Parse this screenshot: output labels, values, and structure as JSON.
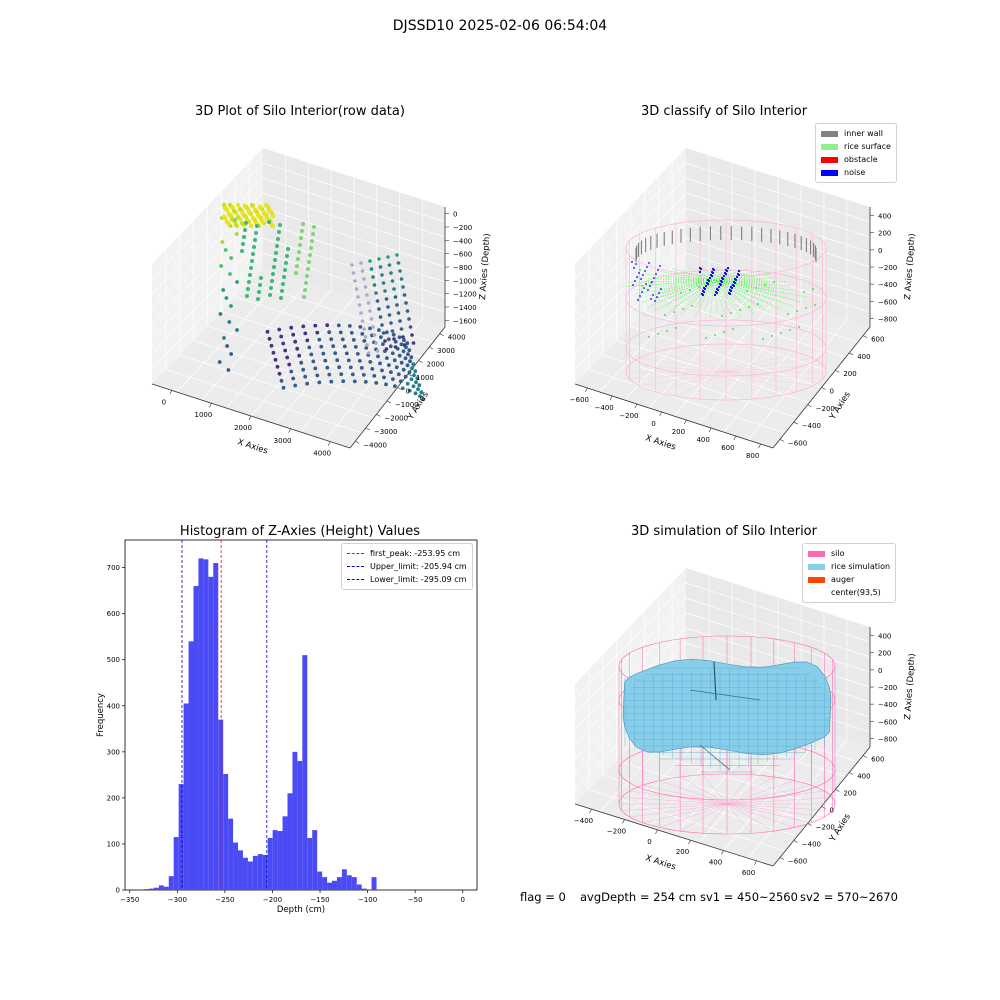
{
  "suptitle": "DJSSD10 2025-02-06 06:54:04",
  "footer": {
    "flag": "flag = 0",
    "avg_depth": "avgDepth = 254 cm",
    "sv1": "sv1 = 450~2560",
    "sv2": "sv2 = 570~2670"
  },
  "colors": {
    "hist_bar": "#4b4bf5",
    "inner_wall": "#808080",
    "rice_surface": "#90ee90",
    "obstacle": "#ff0000",
    "noise": "#0000ff",
    "silo": "#ff69b4",
    "rice_sim": "#87ceeb",
    "auger": "#ff4500"
  },
  "chart_data": [
    {
      "type": "scatter",
      "title": "3D Plot of Silo Interior(row data)",
      "xlabel": "X Axies",
      "ylabel": "Y Axies",
      "zlabel": "Z Axies (Depth)",
      "x_ticks": [
        "0",
        "1000",
        "2000",
        "3000",
        "4000"
      ],
      "y_ticks": [
        "−4000",
        "−3000",
        "−2000",
        "−1000",
        "0",
        "1000",
        "2000",
        "3000",
        "4000"
      ],
      "z_ticks": [
        "−1600",
        "−1400",
        "−1200",
        "−1000",
        "−800",
        "−600",
        "−400",
        "−200",
        "0"
      ],
      "colormap": "viridis"
    },
    {
      "type": "scatter",
      "title": "3D classify of Silo Interior",
      "xlabel": "X Axies",
      "ylabel": "Y Axies",
      "zlabel": "Z Axies (Depth)",
      "x_ticks": [
        "−600",
        "−400",
        "−200",
        "0",
        "200",
        "400",
        "600",
        "800"
      ],
      "y_ticks": [
        "−600",
        "−400",
        "−200",
        "0",
        "200",
        "400",
        "600"
      ],
      "z_ticks": [
        "−800",
        "−600",
        "−400",
        "−200",
        "0",
        "200",
        "400"
      ],
      "legend": [
        "inner wall",
        "rice surface",
        "obstacle",
        "noise"
      ],
      "legend_position": "top-right"
    },
    {
      "type": "bar",
      "title": "Histogram of Z-Axies (Height) Values",
      "xlabel": "Depth (cm)",
      "ylabel": "Frequency",
      "xlim": [
        -355,
        15
      ],
      "ylim": [
        0,
        760
      ],
      "x_ticks": [
        -350,
        -300,
        -250,
        -200,
        -150,
        -100,
        -50,
        0
      ],
      "y_ticks": [
        0,
        100,
        200,
        300,
        400,
        500,
        600,
        700
      ],
      "bin_width": 5.2,
      "bins_start": -335,
      "values": [
        2,
        3,
        5,
        10,
        7,
        30,
        115,
        230,
        405,
        540,
        660,
        720,
        718,
        680,
        710,
        370,
        252,
        155,
        103,
        86,
        70,
        62,
        74,
        78,
        76,
        113,
        130,
        128,
        160,
        210,
        300,
        280,
        510,
        113,
        130,
        40,
        28,
        16,
        20,
        28,
        45,
        32,
        28,
        12,
        3,
        0,
        28
      ],
      "vlines": [
        {
          "label": "first_peak: -253.95 cm",
          "x": -253.95,
          "color": "#ff0000"
        },
        {
          "label": "Upper_limit: -205.94 cm",
          "x": -205.94,
          "color": "#0000cc"
        },
        {
          "label": "Lower_limit: -295.09 cm",
          "x": -295.09,
          "color": "#0000cc"
        }
      ],
      "legend_position": "top-right"
    },
    {
      "type": "surface",
      "title": "3D simulation of Silo Interior",
      "xlabel": "X Axies",
      "ylabel": "Y Axies",
      "zlabel": "Z Axies (Depth)",
      "x_ticks": [
        "−400",
        "−200",
        "0",
        "200",
        "400",
        "600"
      ],
      "y_ticks": [
        "−600",
        "−400",
        "−200",
        "0",
        "200",
        "400",
        "600"
      ],
      "z_ticks": [
        "−800",
        "−600",
        "−400",
        "−200",
        "0",
        "200",
        "400"
      ],
      "legend": [
        "silo",
        "rice simulation",
        "auger",
        "center(93,5)"
      ],
      "legend_position": "top-right"
    }
  ]
}
